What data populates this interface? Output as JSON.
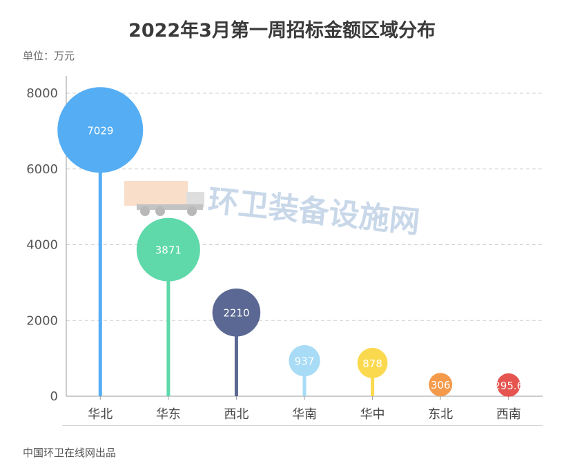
{
  "title": "2022年3月第一周招标金额区域分布",
  "unit": "单位：万元",
  "source": "中国环卫在线网出品",
  "watermark": {
    "text": "环卫装备设施网",
    "icon": "garbage-truck-icon"
  },
  "chart_data": {
    "type": "scatter",
    "subtype": "lollipop-bubble",
    "title": "2022年3月第一周招标金额区域分布",
    "ylabel": "单位：万元",
    "xlabel": "",
    "ylim": [
      0,
      8000
    ],
    "yticks": [
      0,
      2000,
      4000,
      6000,
      8000
    ],
    "grid": true,
    "legend": "none",
    "categories": [
      "华北",
      "华东",
      "西北",
      "华南",
      "华中",
      "东北",
      "西南"
    ],
    "values": [
      7029,
      3871,
      2210,
      937,
      878,
      306,
      295.6
    ],
    "value_labels": [
      "7029",
      "3871",
      "2210",
      "937",
      "878",
      "306",
      "295.6"
    ],
    "colors": [
      "#55adf3",
      "#5fd8aa",
      "#5a6893",
      "#a8dcf6",
      "#fbd94f",
      "#f59a4b",
      "#e5544f"
    ]
  }
}
